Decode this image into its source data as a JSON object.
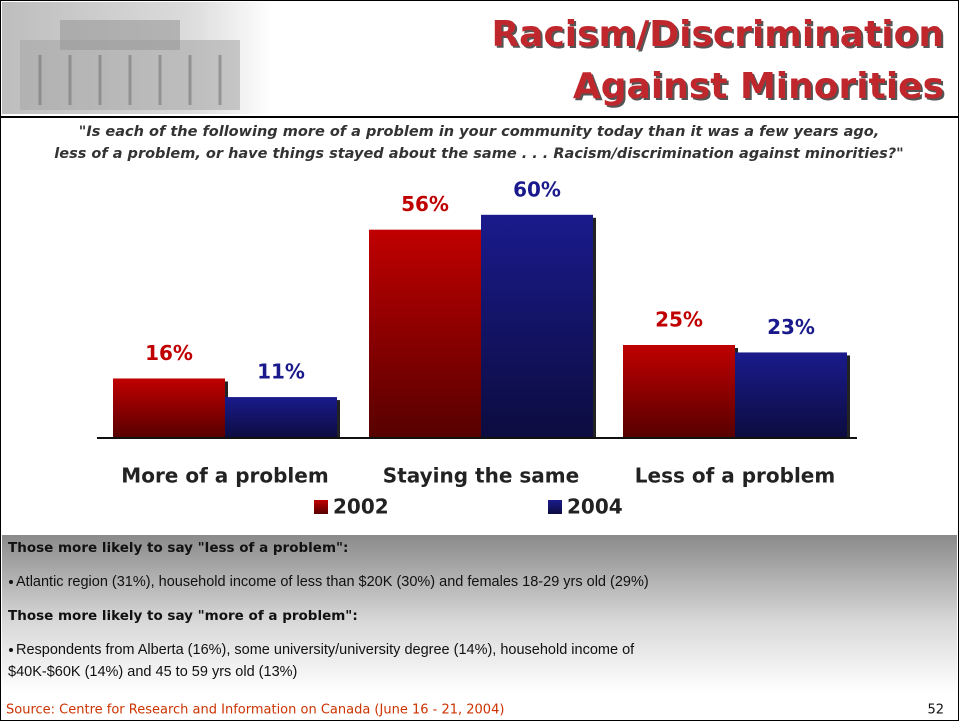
{
  "header": {
    "title_lines": [
      "Racism/Discrimination",
      "Against Minorities"
    ]
  },
  "question_lines": [
    "\"Is each of the following more of a problem in your community today than it was a few years ago,",
    "less of a problem, or have things stayed about the same . . . Racism/discrimination against minorities?\""
  ],
  "chart_data": {
    "type": "bar",
    "categories": [
      "More of a problem",
      "Staying the same",
      "Less of a problem"
    ],
    "series": [
      {
        "name": "2002",
        "color": "#c00000",
        "values": [
          16,
          56,
          25
        ],
        "value_labels": [
          "16%",
          "56%",
          "25%"
        ]
      },
      {
        "name": "2004",
        "color": "#1a1a8c",
        "values": [
          11,
          60,
          23
        ],
        "value_labels": [
          "11%",
          "60%",
          "23%"
        ]
      }
    ]
  },
  "notes": [
    {
      "heading": "Those more likely to say \"less of a problem\":",
      "bullet_lines": [
        "Atlantic region (31%), household income of less than $20K (30%) and females 18-29 yrs old (29%)"
      ]
    },
    {
      "heading": "Those more likely to say \"more of a problem\":",
      "bullet_lines": [
        "Respondents from Alberta (16%), some university/university degree (14%), household income of",
        "$40K-$60K (14%) and 45 to 59 yrs old (13%)"
      ]
    }
  ],
  "source": "Source: Centre for Research and Information on Canada (June 16 - 21, 2004)",
  "page_number": "52"
}
